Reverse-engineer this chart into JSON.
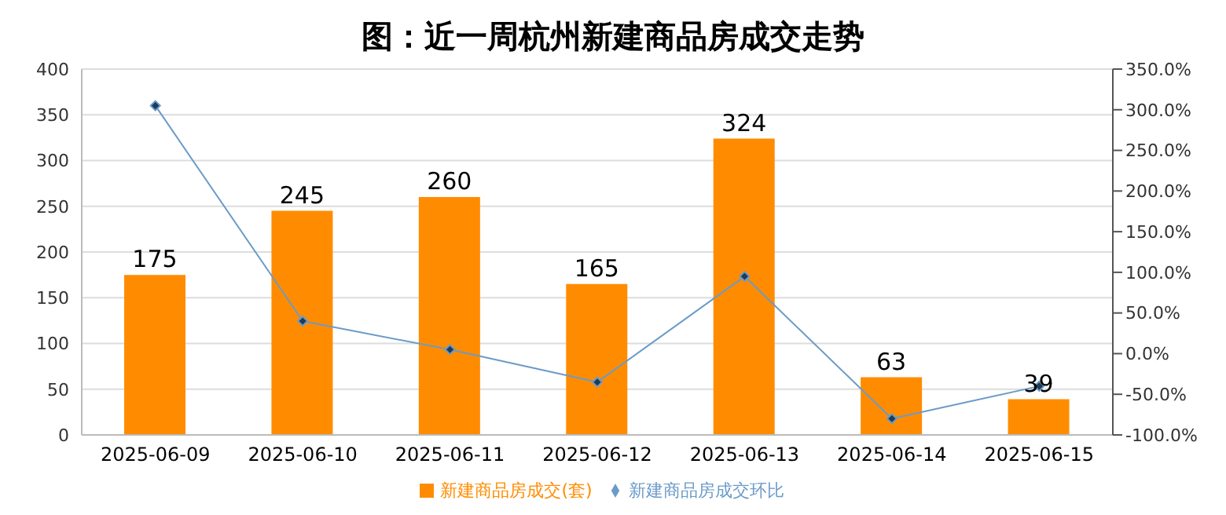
{
  "chart_data": {
    "type": "bar",
    "title": "图：近一周杭州新建商品房成交走势",
    "categories": [
      "2025-06-09",
      "2025-06-10",
      "2025-06-11",
      "2025-06-12",
      "2025-06-13",
      "2025-06-14",
      "2025-06-15"
    ],
    "series": [
      {
        "name": "新建商品房成交(套)",
        "color": "#ff8c00",
        "values": [
          175,
          245,
          260,
          165,
          324,
          63,
          39
        ],
        "value_labels": [
          "175",
          "245",
          "260",
          "165",
          "324",
          "63",
          "39"
        ]
      },
      {
        "name": "新建商品房成交环比",
        "type": "line",
        "axis": "y2",
        "color": "#6b9bc8",
        "marker": "diamond",
        "values": [
          305,
          40,
          5,
          -35,
          95,
          -80,
          -40
        ]
      }
    ],
    "ylim": [
      0,
      400
    ],
    "yticks": [
      0,
      50,
      100,
      150,
      200,
      250,
      300,
      350,
      400
    ],
    "y2lim": [
      -100,
      350
    ],
    "y2ticks": [
      {
        "value": -100,
        "label": "-100.0%"
      },
      {
        "value": -50,
        "label": "-50.0%"
      },
      {
        "value": 0,
        "label": "0.0%"
      },
      {
        "value": 50,
        "label": "50.0%"
      },
      {
        "value": 100,
        "label": "100.0%"
      },
      {
        "value": 150,
        "label": "150.0%"
      },
      {
        "value": 200,
        "label": "200.0%"
      },
      {
        "value": 250,
        "label": "250.0%"
      },
      {
        "value": 300,
        "label": "300.0%"
      },
      {
        "value": 350,
        "label": "350.0%"
      }
    ],
    "grid": "y",
    "legend": "bottom"
  }
}
